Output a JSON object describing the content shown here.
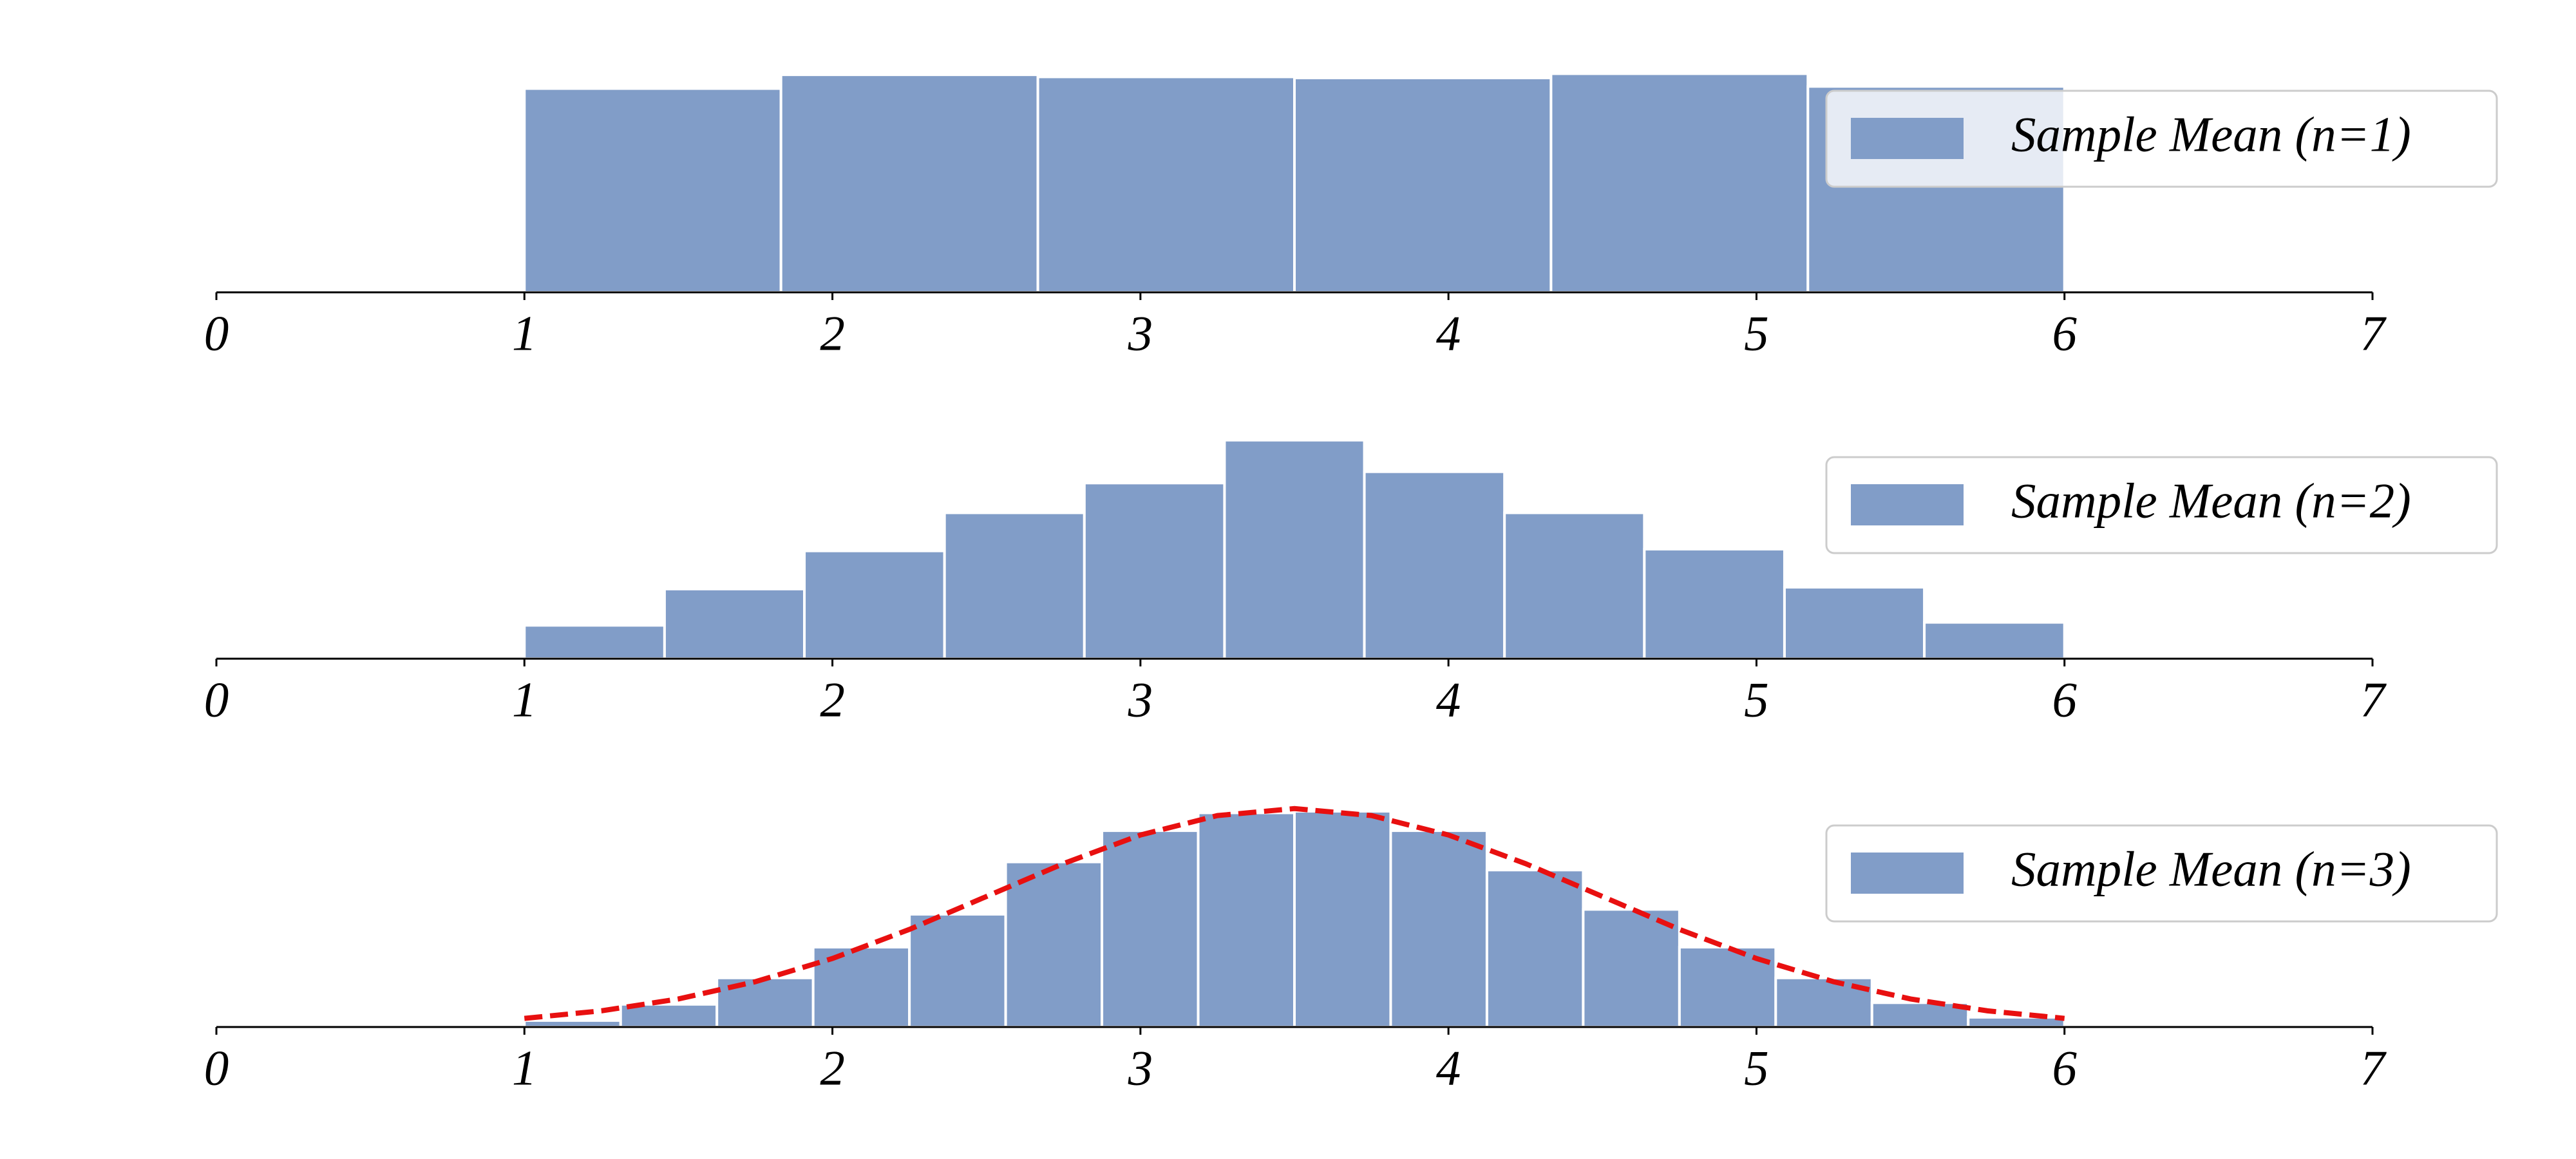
{
  "chart_data": [
    {
      "type": "histogram",
      "name": "Sample Mean (n=1)",
      "color": "#819dc8",
      "bins": [
        1,
        1.833,
        2.667,
        3.5,
        4.333,
        5.167,
        6
      ],
      "values": [
        0.192,
        0.205,
        0.203,
        0.202,
        0.206,
        0.194
      ],
      "xlim": [
        0,
        7
      ],
      "xticks": [
        0,
        1,
        2,
        3,
        4,
        5,
        6,
        7
      ],
      "ylim": [
        0,
        0.216
      ],
      "legend": "upper right"
    },
    {
      "type": "histogram",
      "name": "Sample Mean (n=2)",
      "color": "#819dc8",
      "bins": [
        1,
        1.455,
        1.909,
        2.364,
        2.818,
        3.273,
        3.727,
        4.182,
        4.636,
        5.091,
        5.545,
        6
      ],
      "values": [
        0.056,
        0.117,
        0.181,
        0.245,
        0.295,
        0.367,
        0.314,
        0.245,
        0.184,
        0.12,
        0.061
      ],
      "xlim": [
        0,
        7
      ],
      "xticks": [
        0,
        1,
        2,
        3,
        4,
        5,
        6,
        7
      ],
      "ylim": [
        0,
        0.385
      ],
      "legend": "upper right"
    },
    {
      "type": "histogram",
      "name": "Sample Mean (n=3)",
      "color": "#819dc8",
      "bins": [
        1,
        1.3125,
        1.625,
        1.9375,
        2.25,
        2.5625,
        2.875,
        3.1875,
        3.5,
        3.8125,
        4.125,
        4.4375,
        4.75,
        5.0625,
        5.375,
        5.6875,
        6
      ],
      "values": [
        0.012,
        0.042,
        0.091,
        0.148,
        0.209,
        0.306,
        0.364,
        0.397,
        0.4,
        0.364,
        0.291,
        0.218,
        0.148,
        0.091,
        0.045,
        0.018
      ],
      "xlim": [
        0,
        7
      ],
      "xticks": [
        0,
        1,
        2,
        3,
        4,
        5,
        6,
        7
      ],
      "ylim": [
        0,
        0.425
      ],
      "legend": "upper right",
      "curve": {
        "color": "#e81010",
        "style": "dashed",
        "x": [
          1,
          1.25,
          1.5,
          1.75,
          2,
          2.25,
          2.5,
          2.75,
          3,
          3.25,
          3.5,
          3.75,
          4,
          4.25,
          4.5,
          4.75,
          5,
          5.25,
          5.5,
          5.75,
          6
        ],
        "y": [
          0.016,
          0.03,
          0.052,
          0.084,
          0.127,
          0.181,
          0.242,
          0.303,
          0.356,
          0.392,
          0.405,
          0.392,
          0.356,
          0.303,
          0.242,
          0.181,
          0.127,
          0.084,
          0.052,
          0.03,
          0.016
        ]
      }
    }
  ]
}
